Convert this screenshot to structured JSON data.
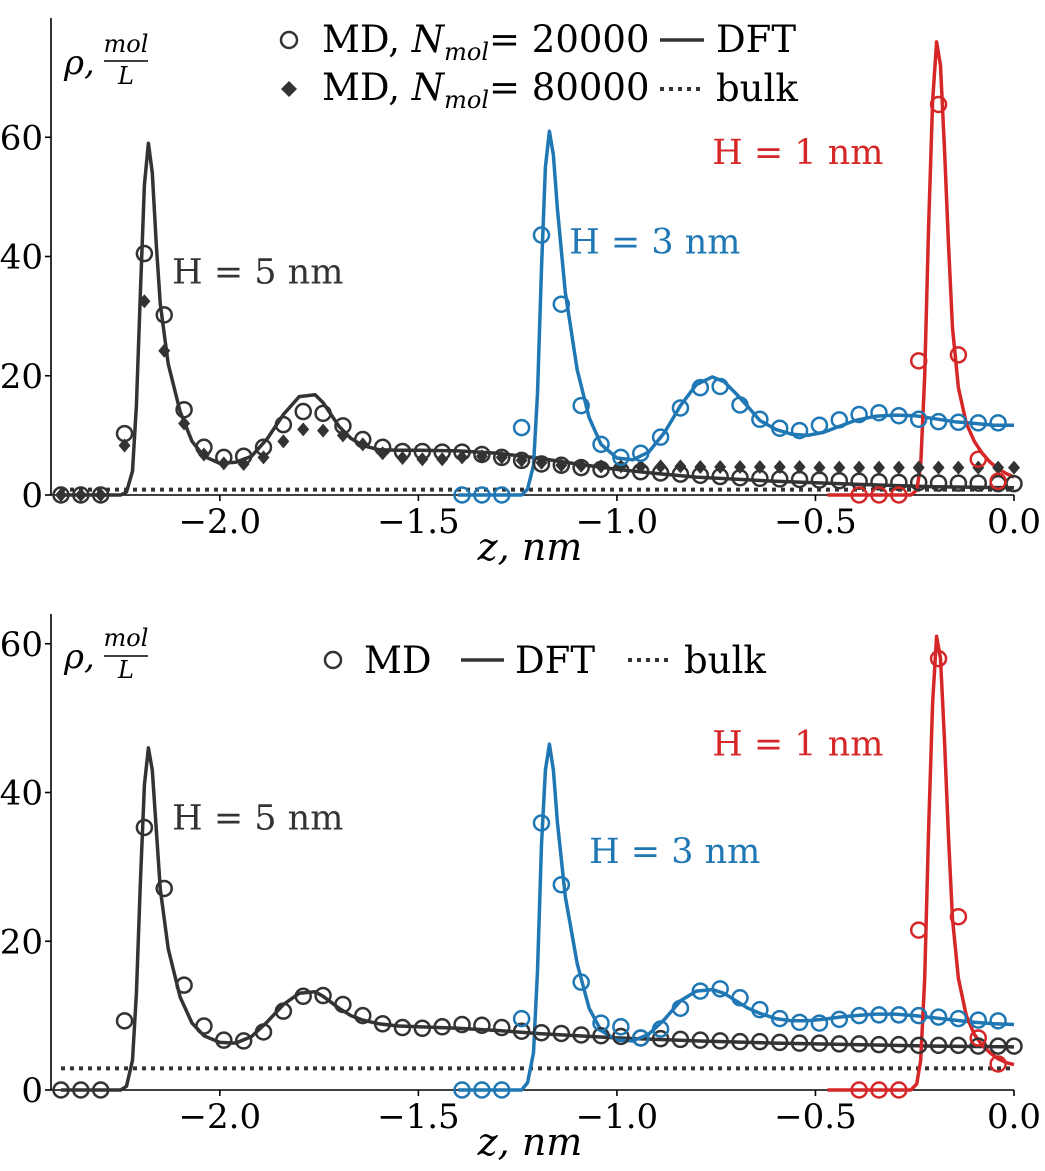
{
  "colors": {
    "black": "#333333",
    "blue": "#1f77b4",
    "red": "#d62728",
    "axis": "#000000"
  },
  "chart_data": [
    {
      "type": "line",
      "xlabel": "z, nm",
      "ylabel": {
        "rho": "ρ,",
        "num": "mol",
        "den": "L"
      },
      "xlim": [
        -2.4,
        0.0
      ],
      "ylim": [
        0,
        80
      ],
      "xticks": [
        -2.0,
        -1.5,
        -1.0,
        -0.5,
        0.0
      ],
      "xtick_labels": [
        "−2.0",
        "−1.5",
        "−1.0",
        "−0.5",
        "0.0"
      ],
      "yticks": [
        0,
        20,
        40,
        60
      ],
      "ytick_labels": [
        "0",
        "20",
        "40",
        "60"
      ],
      "legend": {
        "md": "MD,",
        "md_n": "N",
        "md_sub": "mol",
        "md_val1": "= 20000",
        "md_val2": "= 80000",
        "dft": "DFT",
        "bulk": "bulk"
      },
      "annotations": [
        {
          "text": "H = 5 nm",
          "color": "black",
          "x": -2.12,
          "y": 35.5
        },
        {
          "text": "H = 3 nm",
          "color": "blue",
          "x": -1.12,
          "y": 40.5
        },
        {
          "text": "H = 1 nm",
          "color": "red",
          "x": -0.76,
          "y": 55.5
        }
      ],
      "bulk": {
        "value": 0.9,
        "x_range": [
          -2.4,
          0.0
        ]
      },
      "series": [
        {
          "name": "DFT H = 5 nm",
          "kind": "dft",
          "color": "black",
          "x": [
            -2.4,
            -2.25,
            -2.235,
            -2.22,
            -2.21,
            -2.2,
            -2.19,
            -2.18,
            -2.17,
            -2.16,
            -2.15,
            -2.13,
            -2.1,
            -2.07,
            -2.04,
            -2.0,
            -1.96,
            -1.92,
            -1.88,
            -1.84,
            -1.8,
            -1.76,
            -1.74,
            -1.72,
            -1.7,
            -1.67,
            -1.64,
            -1.6,
            -1.55,
            -1.5,
            -1.4,
            -1.3,
            -1.2,
            -1.1,
            -1.0,
            -0.9,
            -0.8,
            -0.6,
            -0.4,
            -0.2,
            0.0
          ],
          "y": [
            0,
            0,
            0.5,
            4,
            15,
            34,
            52,
            59,
            54,
            42,
            32,
            22,
            14,
            9,
            6.5,
            5.3,
            5.5,
            6.5,
            9.5,
            13.5,
            16.5,
            16.8,
            15.5,
            13.5,
            11.5,
            9.5,
            8.3,
            7.6,
            7.5,
            7.5,
            7.4,
            7,
            6.2,
            5.2,
            4.3,
            3.6,
            3,
            2.3,
            1.8,
            1.4,
            1.2
          ]
        },
        {
          "name": "DFT H = 3 nm",
          "kind": "dft",
          "color": "blue",
          "x": [
            -1.4,
            -1.24,
            -1.225,
            -1.21,
            -1.2,
            -1.19,
            -1.18,
            -1.17,
            -1.16,
            -1.15,
            -1.13,
            -1.1,
            -1.07,
            -1.04,
            -1.0,
            -0.96,
            -0.92,
            -0.88,
            -0.84,
            -0.8,
            -0.76,
            -0.73,
            -0.7,
            -0.67,
            -0.64,
            -0.6,
            -0.56,
            -0.52,
            -0.48,
            -0.44,
            -0.4,
            -0.35,
            -0.3,
            -0.25,
            -0.2,
            -0.15,
            -0.1,
            -0.05,
            0.0
          ],
          "y": [
            0,
            0,
            1,
            5,
            17,
            38,
            55,
            61,
            57,
            48,
            34,
            21,
            13,
            8.5,
            6.2,
            5.9,
            7.2,
            10.5,
            15,
            18.5,
            19.8,
            19,
            17,
            14.8,
            12.5,
            11,
            10.2,
            10,
            10.5,
            11.5,
            12.5,
            13.2,
            13.4,
            13.3,
            12.8,
            12.3,
            12,
            11.7,
            11.7
          ]
        },
        {
          "name": "DFT H = 1 nm",
          "kind": "dft",
          "color": "red",
          "x": [
            -0.47,
            -0.26,
            -0.245,
            -0.235,
            -0.225,
            -0.215,
            -0.205,
            -0.195,
            -0.185,
            -0.175,
            -0.165,
            -0.155,
            -0.14,
            -0.12,
            -0.1,
            -0.08,
            -0.06,
            -0.04,
            -0.02,
            0.0
          ],
          "y": [
            0,
            0,
            0.8,
            5,
            20,
            45,
            66,
            76,
            72,
            58,
            42,
            28,
            18,
            12,
            9,
            7,
            5.5,
            4.4,
            3.6,
            3
          ]
        },
        {
          "name": "MD H = 5 nm, N_mol = 20000",
          "kind": "md_open",
          "color": "black",
          "x": [
            -2.4,
            -2.35,
            -2.3,
            -2.24,
            -2.19,
            -2.14,
            -2.09,
            -2.04,
            -1.99,
            -1.94,
            -1.89,
            -1.84,
            -1.79,
            -1.74,
            -1.69,
            -1.64,
            -1.59,
            -1.54,
            -1.49,
            -1.44,
            -1.39,
            -1.34,
            -1.29,
            -1.24,
            -1.19,
            -1.14,
            -1.09,
            -1.04,
            -0.99,
            -0.94,
            -0.89,
            -0.84,
            -0.79,
            -0.74,
            -0.69,
            -0.64,
            -0.59,
            -0.54,
            -0.49,
            -0.44,
            -0.39,
            -0.34,
            -0.29,
            -0.24,
            -0.19,
            -0.14,
            -0.09,
            -0.04,
            0.0
          ],
          "y": [
            0,
            0,
            0,
            10.3,
            40.5,
            30.2,
            14.3,
            8,
            6.3,
            6.5,
            8,
            11.8,
            14,
            13.7,
            11.6,
            9.3,
            8,
            7.3,
            7.3,
            7.2,
            7.2,
            6.8,
            6.3,
            5.8,
            5.2,
            5,
            4.6,
            4.3,
            4.1,
            3.9,
            3.7,
            3.5,
            3.3,
            3.1,
            2.9,
            2.8,
            2.7,
            2.6,
            2.5,
            2.4,
            2.3,
            2.2,
            2.1,
            2.1,
            2,
            2,
            2,
            1.9,
            1.9
          ]
        },
        {
          "name": "MD H = 5 nm, N_mol = 80000",
          "kind": "md_diamond",
          "color": "black",
          "x": [
            -2.4,
            -2.35,
            -2.3,
            -2.24,
            -2.19,
            -2.14,
            -2.09,
            -2.04,
            -1.99,
            -1.94,
            -1.89,
            -1.84,
            -1.79,
            -1.74,
            -1.69,
            -1.64,
            -1.59,
            -1.54,
            -1.49,
            -1.44,
            -1.39,
            -1.34,
            -1.29,
            -1.24,
            -1.19,
            -1.14,
            -1.09,
            -1.04,
            -0.99,
            -0.94,
            -0.89,
            -0.84,
            -0.79,
            -0.74,
            -0.69,
            -0.64,
            -0.59,
            -0.54,
            -0.49,
            -0.44,
            -0.39,
            -0.34,
            -0.29,
            -0.24,
            -0.19,
            -0.14,
            -0.09,
            -0.04,
            0.0
          ],
          "y": [
            0,
            0,
            0,
            8.3,
            32.5,
            24.2,
            12,
            6.8,
            5.3,
            5.2,
            6.3,
            9,
            11,
            10.8,
            10,
            8.5,
            7,
            6.2,
            6,
            6,
            6.3,
            6.5,
            6.3,
            5.8,
            5.4,
            5,
            4.9,
            4.8,
            4.8,
            4.8,
            4.8,
            4.8,
            4.7,
            4.7,
            4.7,
            4.7,
            4.7,
            4.7,
            4.6,
            4.6,
            4.6,
            4.6,
            4.6,
            4.6,
            4.6,
            4.6,
            4.6,
            4.6,
            4.6
          ]
        },
        {
          "name": "MD H = 3 nm",
          "kind": "md_open",
          "color": "blue",
          "x": [
            -1.39,
            -1.34,
            -1.29,
            -1.24,
            -1.19,
            -1.14,
            -1.09,
            -1.04,
            -0.99,
            -0.94,
            -0.89,
            -0.84,
            -0.79,
            -0.74,
            -0.69,
            -0.64,
            -0.59,
            -0.54,
            -0.49,
            -0.44,
            -0.39,
            -0.34,
            -0.29,
            -0.24,
            -0.19,
            -0.14,
            -0.09,
            -0.04
          ],
          "y": [
            0,
            0,
            0,
            11.3,
            43.6,
            32,
            15,
            8.5,
            6.3,
            7,
            9.7,
            14.6,
            18,
            18.2,
            15.1,
            12.7,
            11.2,
            10.8,
            11.7,
            12.6,
            13.5,
            13.8,
            13.3,
            12.7,
            12.3,
            12.2,
            12.1,
            12.1
          ]
        },
        {
          "name": "MD H = 1 nm",
          "kind": "md_open",
          "color": "red",
          "x": [
            -0.39,
            -0.34,
            -0.29,
            -0.24,
            -0.19,
            -0.14,
            -0.09,
            -0.04
          ],
          "y": [
            0,
            0,
            0,
            22.5,
            65.5,
            23.5,
            6,
            2.3
          ]
        }
      ]
    },
    {
      "type": "line",
      "xlabel": "z, nm",
      "ylabel": {
        "rho": "ρ,",
        "num": "mol",
        "den": "L"
      },
      "xlim": [
        -2.4,
        0.0
      ],
      "ylim": [
        0,
        64
      ],
      "xticks": [
        -2.0,
        -1.5,
        -1.0,
        -0.5,
        0.0
      ],
      "xtick_labels": [
        "−2.0",
        "−1.5",
        "−1.0",
        "−0.5",
        "0.0"
      ],
      "yticks": [
        0,
        20,
        40,
        60
      ],
      "ytick_labels": [
        "0",
        "20",
        "40",
        "60"
      ],
      "legend": {
        "md": "MD",
        "dft": "DFT",
        "bulk": "bulk"
      },
      "annotations": [
        {
          "text": "H = 5 nm",
          "color": "black",
          "x": -2.12,
          "y": 35
        },
        {
          "text": "H = 3 nm",
          "color": "blue",
          "x": -1.07,
          "y": 30.5
        },
        {
          "text": "H = 1 nm",
          "color": "red",
          "x": -0.76,
          "y": 45
        }
      ],
      "bulk": {
        "value": 2.9,
        "x_range": [
          -2.4,
          0.0
        ]
      },
      "series": [
        {
          "name": "DFT H = 5 nm",
          "kind": "dft",
          "color": "black",
          "x": [
            -2.4,
            -2.25,
            -2.235,
            -2.22,
            -2.21,
            -2.2,
            -2.19,
            -2.18,
            -2.17,
            -2.16,
            -2.15,
            -2.13,
            -2.1,
            -2.07,
            -2.04,
            -2.0,
            -1.96,
            -1.92,
            -1.88,
            -1.84,
            -1.8,
            -1.76,
            -1.74,
            -1.72,
            -1.7,
            -1.67,
            -1.64,
            -1.6,
            -1.55,
            -1.5,
            -1.4,
            -1.3,
            -1.2,
            -1.1,
            -1.0,
            -0.9,
            -0.8,
            -0.6,
            -0.4,
            -0.2,
            0.0
          ],
          "y": [
            0,
            0,
            0.5,
            4,
            13,
            28,
            41,
            46,
            43,
            35,
            27,
            19,
            12.5,
            9,
            7.3,
            6.4,
            6.3,
            7.2,
            9.2,
            11.5,
            13,
            13.2,
            12.6,
            11.8,
            11,
            10,
            9.4,
            8.9,
            8.6,
            8.5,
            8.3,
            8,
            7.6,
            7.3,
            7,
            6.8,
            6.6,
            6.3,
            6.1,
            5.9,
            5.8
          ]
        },
        {
          "name": "DFT H = 3 nm",
          "kind": "dft",
          "color": "blue",
          "x": [
            -1.4,
            -1.24,
            -1.225,
            -1.21,
            -1.2,
            -1.19,
            -1.18,
            -1.17,
            -1.16,
            -1.15,
            -1.13,
            -1.1,
            -1.07,
            -1.04,
            -1.0,
            -0.96,
            -0.92,
            -0.88,
            -0.84,
            -0.8,
            -0.76,
            -0.73,
            -0.7,
            -0.67,
            -0.64,
            -0.6,
            -0.56,
            -0.52,
            -0.48,
            -0.44,
            -0.4,
            -0.35,
            -0.3,
            -0.25,
            -0.2,
            -0.15,
            -0.1,
            -0.05,
            0.0
          ],
          "y": [
            0,
            0,
            1,
            5,
            16,
            33,
            43,
            46.5,
            43,
            36,
            26,
            17,
            11,
            8,
            6.7,
            6.6,
            7.5,
            9.5,
            12,
            13.3,
            13.5,
            13,
            12,
            11,
            10.3,
            9.6,
            9.3,
            9.3,
            9.5,
            9.8,
            10,
            10.2,
            10.2,
            10,
            9.7,
            9.4,
            9.1,
            8.9,
            8.8
          ]
        },
        {
          "name": "DFT H = 1 nm",
          "kind": "dft",
          "color": "red",
          "x": [
            -0.47,
            -0.26,
            -0.245,
            -0.235,
            -0.225,
            -0.215,
            -0.205,
            -0.195,
            -0.185,
            -0.175,
            -0.165,
            -0.155,
            -0.14,
            -0.12,
            -0.1,
            -0.08,
            -0.06,
            -0.04,
            -0.02,
            0.0
          ],
          "y": [
            0,
            0,
            0.8,
            4,
            15,
            35,
            52,
            61,
            58,
            47,
            34,
            23,
            15,
            10,
            7.5,
            6,
            5,
            4.2,
            3.7,
            3.4
          ]
        },
        {
          "name": "MD H = 5 nm",
          "kind": "md_open",
          "color": "black",
          "x": [
            -2.4,
            -2.35,
            -2.3,
            -2.24,
            -2.19,
            -2.14,
            -2.09,
            -2.04,
            -1.99,
            -1.94,
            -1.89,
            -1.84,
            -1.79,
            -1.74,
            -1.69,
            -1.64,
            -1.59,
            -1.54,
            -1.49,
            -1.44,
            -1.39,
            -1.34,
            -1.29,
            -1.24,
            -1.19,
            -1.14,
            -1.09,
            -1.04,
            -0.99,
            -0.94,
            -0.89,
            -0.84,
            -0.79,
            -0.74,
            -0.69,
            -0.64,
            -0.59,
            -0.54,
            -0.49,
            -0.44,
            -0.39,
            -0.34,
            -0.29,
            -0.24,
            -0.19,
            -0.14,
            -0.09,
            -0.04,
            0.0
          ],
          "y": [
            0,
            0,
            0,
            9.3,
            35.3,
            27.1,
            14.1,
            8.6,
            6.7,
            6.6,
            7.8,
            10.6,
            12.6,
            12.7,
            11.5,
            10,
            8.9,
            8.4,
            8.3,
            8.5,
            8.8,
            8.7,
            8.4,
            7.9,
            7.7,
            7.6,
            7.4,
            7.3,
            7.2,
            7,
            6.9,
            6.8,
            6.7,
            6.6,
            6.5,
            6.5,
            6.4,
            6.3,
            6.3,
            6.2,
            6.2,
            6.1,
            6.1,
            6,
            6,
            6,
            5.9,
            5.9,
            5.9
          ]
        },
        {
          "name": "MD H = 3 nm",
          "kind": "md_open",
          "color": "blue",
          "x": [
            -1.39,
            -1.34,
            -1.29,
            -1.24,
            -1.19,
            -1.14,
            -1.09,
            -1.04,
            -0.99,
            -0.94,
            -0.89,
            -0.84,
            -0.79,
            -0.74,
            -0.69,
            -0.64,
            -0.59,
            -0.54,
            -0.49,
            -0.44,
            -0.39,
            -0.34,
            -0.29,
            -0.24,
            -0.19,
            -0.14,
            -0.09,
            -0.04
          ],
          "y": [
            0,
            0,
            0,
            9.6,
            35.9,
            27.6,
            14.5,
            9,
            8.5,
            7,
            8.2,
            11,
            13.3,
            13.6,
            12.4,
            10.8,
            9.6,
            9.1,
            9,
            9.5,
            10,
            10.1,
            10.1,
            10,
            9.8,
            9.6,
            9.4,
            9.3
          ]
        },
        {
          "name": "MD H = 1 nm",
          "kind": "md_open",
          "color": "red",
          "x": [
            -0.39,
            -0.34,
            -0.29,
            -0.24,
            -0.19,
            -0.14,
            -0.09,
            -0.04
          ],
          "y": [
            0,
            0,
            0,
            21.5,
            58,
            23.3,
            7,
            3.5
          ]
        }
      ]
    }
  ]
}
